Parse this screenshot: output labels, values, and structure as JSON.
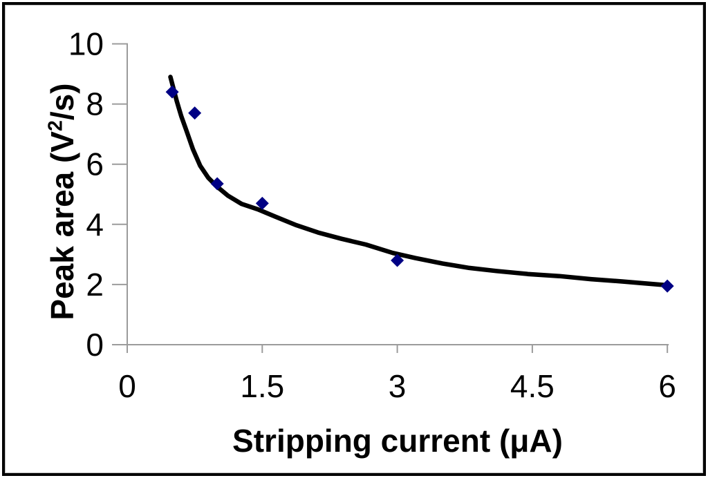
{
  "chart_data": {
    "type": "scatter",
    "title": "",
    "xlabel": "Stripping current (μA)",
    "ylabel": "Peak area (V²/s)",
    "ylabel_parts": {
      "pre": "Peak area (V",
      "sup": "2",
      "post": "/s)"
    },
    "xlim": [
      0,
      6
    ],
    "ylim": [
      0,
      10
    ],
    "grid": false,
    "legend": null,
    "x_ticks": [
      {
        "value": 0,
        "label": "0"
      },
      {
        "value": 1.5,
        "label": "1.5"
      },
      {
        "value": 3,
        "label": "3"
      },
      {
        "value": 4.5,
        "label": "4.5"
      },
      {
        "value": 6,
        "label": "6"
      }
    ],
    "y_ticks": [
      {
        "value": 0,
        "label": "0"
      },
      {
        "value": 2,
        "label": "2"
      },
      {
        "value": 4,
        "label": "4"
      },
      {
        "value": 6,
        "label": "6"
      },
      {
        "value": 8,
        "label": "8"
      },
      {
        "value": 10,
        "label": "10"
      }
    ],
    "series": [
      {
        "name": "measured-points",
        "type": "scatter",
        "marker": "diamond",
        "color": "#000084",
        "points": [
          [
            0.5,
            8.4
          ],
          [
            0.75,
            7.7
          ],
          [
            1.0,
            5.35
          ],
          [
            1.5,
            4.7
          ],
          [
            3.0,
            2.8
          ],
          [
            6.0,
            1.95
          ]
        ]
      },
      {
        "name": "trend-curve",
        "type": "line",
        "color": "#000000",
        "points": [
          [
            0.48,
            8.9
          ],
          [
            0.55,
            8.1
          ],
          [
            0.6,
            7.6
          ],
          [
            0.66,
            7.1
          ],
          [
            0.73,
            6.5
          ],
          [
            0.81,
            5.95
          ],
          [
            0.9,
            5.55
          ],
          [
            1.0,
            5.25
          ],
          [
            1.12,
            4.95
          ],
          [
            1.27,
            4.68
          ],
          [
            1.45,
            4.5
          ],
          [
            1.65,
            4.25
          ],
          [
            1.88,
            3.97
          ],
          [
            2.12,
            3.73
          ],
          [
            2.38,
            3.52
          ],
          [
            2.65,
            3.33
          ],
          [
            2.95,
            3.05
          ],
          [
            3.2,
            2.88
          ],
          [
            3.5,
            2.7
          ],
          [
            3.8,
            2.55
          ],
          [
            4.1,
            2.45
          ],
          [
            4.45,
            2.35
          ],
          [
            4.8,
            2.28
          ],
          [
            5.15,
            2.18
          ],
          [
            5.5,
            2.1
          ],
          [
            5.75,
            2.04
          ],
          [
            5.98,
            1.98
          ]
        ]
      }
    ],
    "axis_color": "#9b9b9b",
    "text_color": "#000000"
  }
}
